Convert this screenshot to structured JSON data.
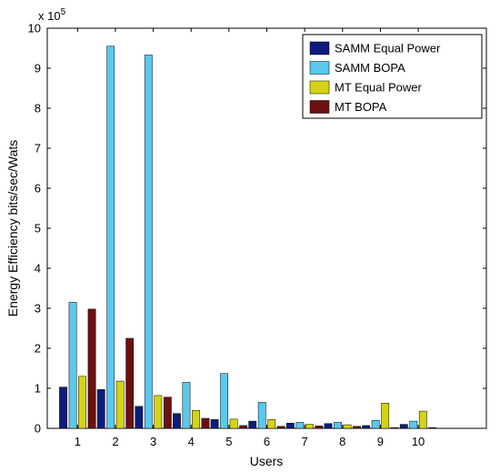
{
  "chart_data": {
    "type": "bar",
    "title": "",
    "xlabel": "Users",
    "ylabel": "Energy Efficiency bits/sec/Wats",
    "y_exponent_label": "x 10",
    "y_exponent_power": "5",
    "y_scale": 100000,
    "categories": [
      "1",
      "2",
      "3",
      "4",
      "5",
      "6",
      "7",
      "8",
      "9",
      "10"
    ],
    "xlim": [
      0.2,
      11.8
    ],
    "ylim": [
      0,
      10
    ],
    "yticks": [
      "0",
      "1",
      "2",
      "3",
      "4",
      "5",
      "6",
      "7",
      "8",
      "9",
      "10"
    ],
    "grid": false,
    "legend_position": "top-right",
    "series": [
      {
        "name": "SAMM Equal Power",
        "color": "#0d1c7c",
        "values": [
          1.03,
          0.97,
          0.55,
          0.37,
          0.22,
          0.18,
          0.13,
          0.12,
          0.07,
          0.1
        ]
      },
      {
        "name": "SAMM BOPA",
        "color": "#5bc8ee",
        "values": [
          3.15,
          9.55,
          9.33,
          1.15,
          1.37,
          0.65,
          0.15,
          0.15,
          0.2,
          0.18
        ]
      },
      {
        "name": "MT Equal Power",
        "color": "#d4d414",
        "values": [
          1.3,
          1.18,
          0.82,
          0.45,
          0.23,
          0.22,
          0.1,
          0.09,
          0.63,
          0.43
        ]
      },
      {
        "name": "MT BOPA",
        "color": "#6b1010",
        "values": [
          2.98,
          2.25,
          0.78,
          0.25,
          0.07,
          0.05,
          0.06,
          0.05,
          0.02,
          0.02
        ]
      }
    ]
  }
}
